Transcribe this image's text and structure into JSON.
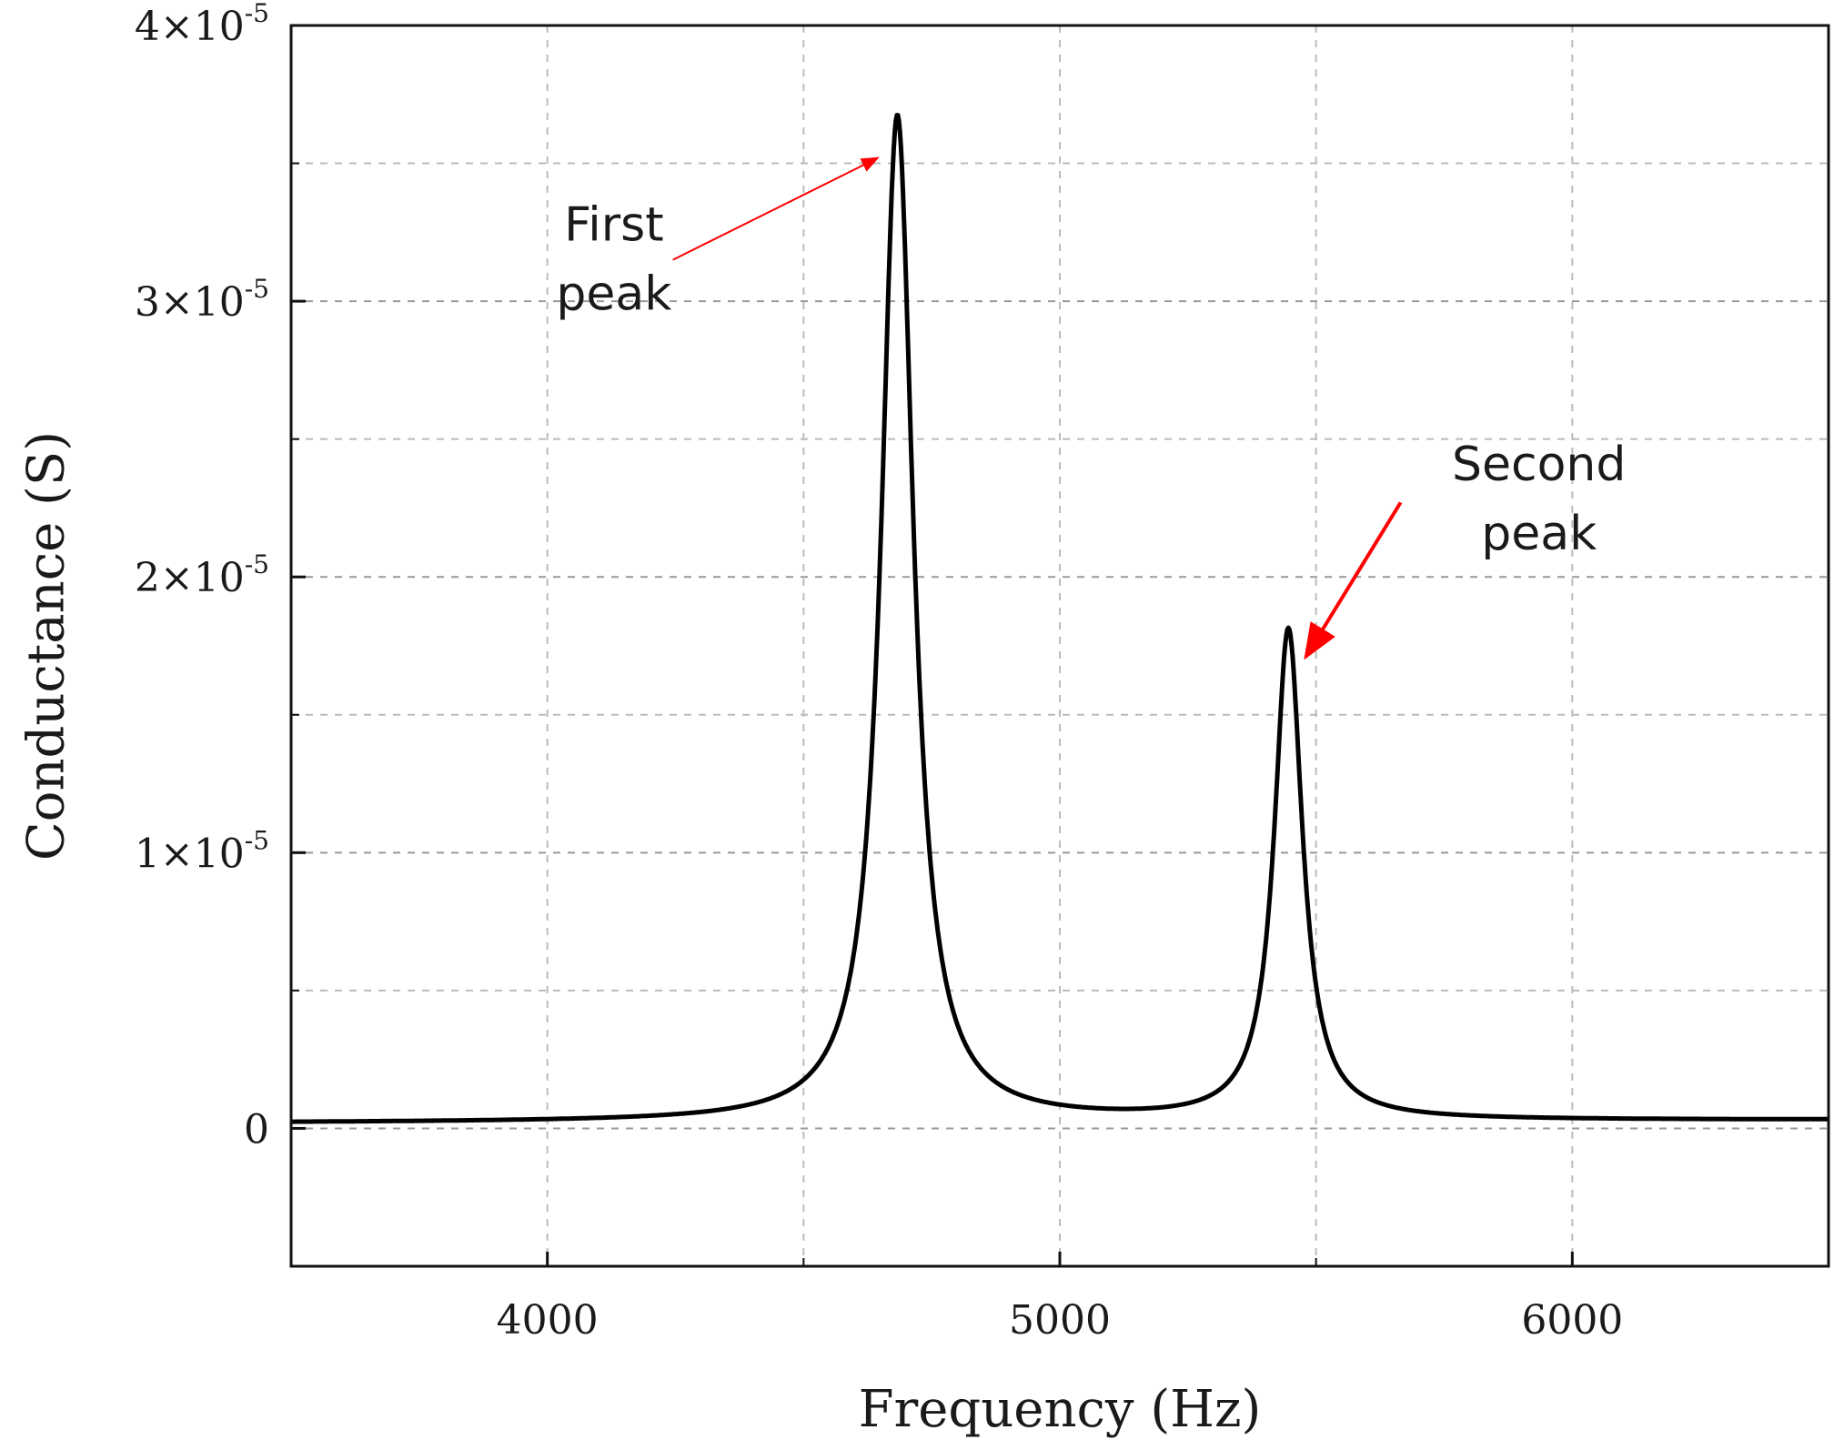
{
  "chart_data": {
    "type": "line",
    "title": "",
    "xlabel": "Frequency (Hz)",
    "ylabel": "Conductance (S)",
    "xlim": [
      3500,
      6500
    ],
    "ylim": [
      -5e-06,
      4e-05
    ],
    "xticks": [
      {
        "value": 4000,
        "label": "4000"
      },
      {
        "value": 5000,
        "label": "5000"
      },
      {
        "value": 6000,
        "label": "6000"
      }
    ],
    "x_minor_ticks": [
      4500,
      5500
    ],
    "yticks": [
      {
        "value": 0,
        "coef": "0",
        "exp": ""
      },
      {
        "value": 1e-05,
        "coef": "1×10",
        "exp": "-5"
      },
      {
        "value": 2e-05,
        "coef": "2×10",
        "exp": "-5"
      },
      {
        "value": 3e-05,
        "coef": "3×10",
        "exp": "-5"
      },
      {
        "value": 4e-05,
        "coef": "4×10",
        "exp": "-5"
      }
    ],
    "y_minor_ticks": [
      5e-06,
      1.5e-05,
      2.5e-05,
      3.5e-05
    ],
    "grid": true,
    "series": [
      {
        "name": "Conductance",
        "color": "#000000",
        "model": "sum of two resonance peaks plus small baseline",
        "peaks": [
          {
            "frequency": 4683,
            "height": 3.65e-05
          },
          {
            "frequency": 5446,
            "height": 1.78e-05
          }
        ],
        "x_start": 3500,
        "x_end": 6500
      }
    ],
    "annotations": [
      {
        "lines": [
          "First",
          "peak"
        ],
        "text_x": 4130,
        "text_y": 3.22e-05,
        "arrow_from": [
          4245,
          3.15e-05
        ],
        "arrow_to": [
          4645,
          3.52e-05
        ],
        "color": "#ff0000"
      },
      {
        "lines": [
          "Second",
          "peak"
        ],
        "text_x": 5935,
        "text_y": 2.35e-05,
        "arrow_from": [
          5665,
          2.27e-05
        ],
        "arrow_to": [
          5480,
          1.71e-05
        ],
        "color": "#ff0000"
      }
    ]
  }
}
